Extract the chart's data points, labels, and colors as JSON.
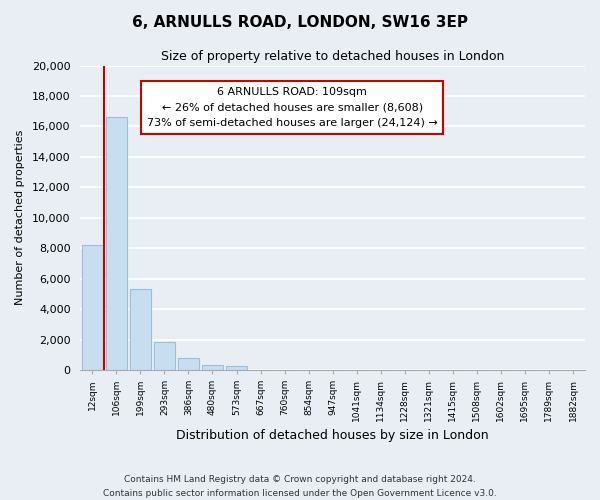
{
  "title": "6, ARNULLS ROAD, LONDON, SW16 3EP",
  "subtitle": "Size of property relative to detached houses in London",
  "xlabel": "Distribution of detached houses by size in London",
  "ylabel": "Number of detached properties",
  "bar_color": "#c8ddf0",
  "bar_edge_color": "#9bbfd8",
  "categories": [
    "12sqm",
    "106sqm",
    "199sqm",
    "293sqm",
    "386sqm",
    "480sqm",
    "573sqm",
    "667sqm",
    "760sqm",
    "854sqm",
    "947sqm",
    "1041sqm",
    "1134sqm",
    "1228sqm",
    "1321sqm",
    "1415sqm",
    "1508sqm",
    "1602sqm",
    "1695sqm",
    "1789sqm",
    "1882sqm"
  ],
  "values": [
    8200,
    16600,
    5300,
    1850,
    800,
    300,
    280,
    0,
    0,
    0,
    0,
    0,
    0,
    0,
    0,
    0,
    0,
    0,
    0,
    0,
    0
  ],
  "ylim": [
    0,
    20000
  ],
  "yticks": [
    0,
    2000,
    4000,
    6000,
    8000,
    10000,
    12000,
    14000,
    16000,
    18000,
    20000
  ],
  "property_line_color": "#cc0000",
  "annotation_title": "6 ARNULLS ROAD: 109sqm",
  "annotation_line1": "← 26% of detached houses are smaller (8,608)",
  "annotation_line2": "73% of semi-detached houses are larger (24,124) →",
  "annotation_box_color": "#ffffff",
  "annotation_box_edge": "#cc0000",
  "footer_line1": "Contains HM Land Registry data © Crown copyright and database right 2024.",
  "footer_line2": "Contains public sector information licensed under the Open Government Licence v3.0.",
  "background_color": "#e8eef4",
  "plot_background_color": "#e8eef4",
  "grid_color": "#ffffff"
}
